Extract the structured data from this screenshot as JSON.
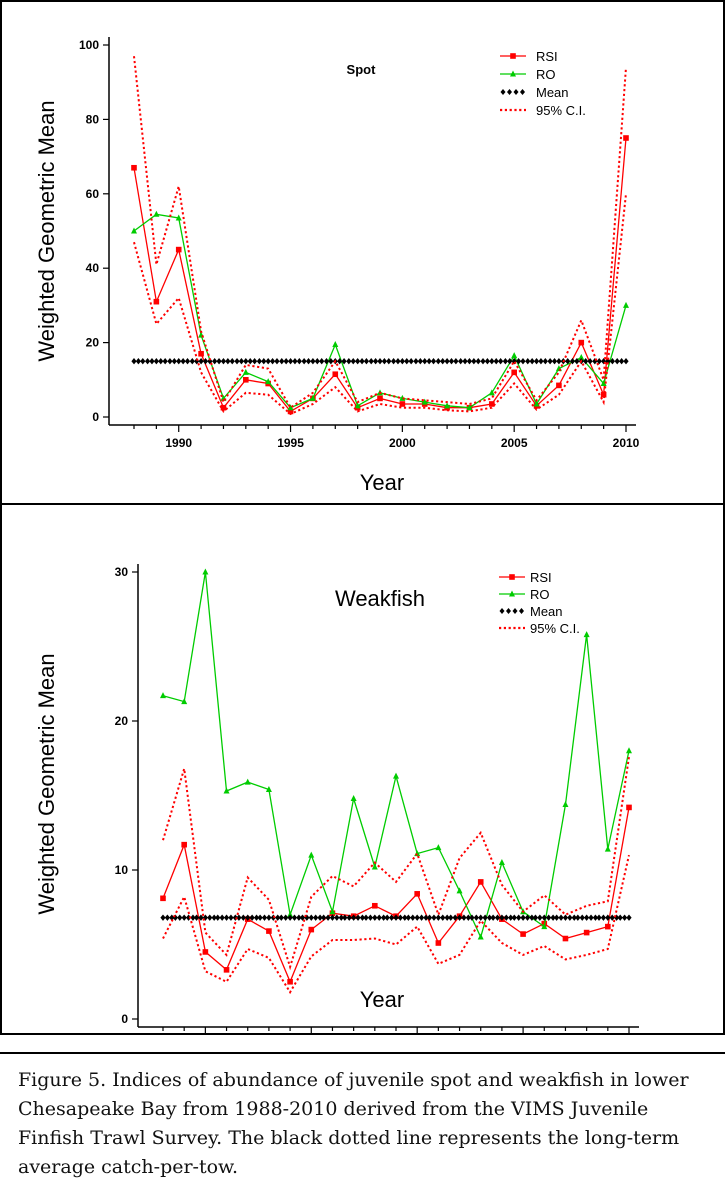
{
  "chart_data": [
    {
      "type": "line",
      "title": "Spot",
      "xlabel": "Year",
      "ylabel": "Weighted Geometric Mean",
      "xlim": [
        1988,
        2010
      ],
      "ylim": [
        0,
        100
      ],
      "xticks": [
        1990,
        1995,
        2000,
        2005,
        2010
      ],
      "yticks": [
        0,
        20,
        40,
        60,
        80,
        100
      ],
      "legend_position": "top-right",
      "x": [
        1988,
        1989,
        1990,
        1991,
        1992,
        1993,
        1994,
        1995,
        1996,
        1997,
        1998,
        1999,
        2000,
        2001,
        2002,
        2003,
        2004,
        2005,
        2006,
        2007,
        2008,
        2009,
        2010
      ],
      "series": [
        {
          "name": "RSI",
          "color": "#ff0000",
          "style": "solid-square",
          "values": [
            67,
            31,
            45,
            17,
            2.5,
            10,
            9,
            1.5,
            5,
            11.5,
            2.5,
            5,
            3.5,
            3.5,
            2.5,
            2.5,
            3.5,
            12,
            3,
            8.5,
            20,
            6,
            75
          ]
        },
        {
          "name": "RO",
          "color": "#00cc00",
          "style": "solid-triangle",
          "values": [
            50,
            54.5,
            53.5,
            22,
            5,
            12,
            9.5,
            2.5,
            5,
            19.5,
            3,
            6.5,
            5,
            4,
            3,
            2.5,
            6.5,
            16.5,
            3.5,
            13,
            16,
            9,
            30
          ]
        },
        {
          "name": "Mean",
          "color": "#000000",
          "style": "diamonds",
          "values": [
            15,
            15,
            15,
            15,
            15,
            15,
            15,
            15,
            15,
            15,
            15,
            15,
            15,
            15,
            15,
            15,
            15,
            15,
            15,
            15,
            15,
            15,
            15
          ]
        },
        {
          "name": "95% C.I.",
          "color": "#ff0000",
          "style": "dotted",
          "values": [
            97,
            41,
            62,
            23,
            4,
            14,
            13,
            2.5,
            6.5,
            15,
            4,
            6.5,
            5,
            4.5,
            4,
            3.5,
            5,
            15,
            4.5,
            12,
            26,
            10,
            94
          ]
        },
        {
          "name": "",
          "color": "#ff0000",
          "style": "dotted",
          "values": [
            47,
            25,
            32,
            12,
            1.5,
            6.5,
            6,
            0.8,
            3.5,
            8,
            1.5,
            3.5,
            2.5,
            2.5,
            1.8,
            1.5,
            2.5,
            9,
            2,
            6,
            15,
            4,
            60
          ]
        }
      ]
    },
    {
      "type": "line",
      "title": "Weakfish",
      "xlabel": "Year",
      "ylabel": "Weighted Geometric Mean",
      "xlim": [
        1988,
        2010
      ],
      "ylim": [
        0,
        30
      ],
      "xticks": [
        1990,
        1995,
        2000,
        2005,
        2010
      ],
      "yticks": [
        0,
        10,
        20,
        30
      ],
      "legend_position": "top-right",
      "x": [
        1988,
        1989,
        1990,
        1991,
        1992,
        1993,
        1994,
        1995,
        1996,
        1997,
        1998,
        1999,
        2000,
        2001,
        2002,
        2003,
        2004,
        2005,
        2006,
        2007,
        2008,
        2009,
        2010
      ],
      "series": [
        {
          "name": "RSI",
          "color": "#ff0000",
          "style": "solid-square",
          "values": [
            8.1,
            11.7,
            4.5,
            3.3,
            6.7,
            5.9,
            2.5,
            6.0,
            7.1,
            6.9,
            7.6,
            6.9,
            8.4,
            5.1,
            6.9,
            9.2,
            6.7,
            5.7,
            6.4,
            5.4,
            5.8,
            6.2,
            14.2
          ]
        },
        {
          "name": "RO",
          "color": "#00cc00",
          "style": "solid-triangle",
          "values": [
            21.7,
            21.3,
            30.0,
            15.3,
            15.9,
            15.4,
            7.0,
            11.0,
            7.2,
            14.8,
            10.2,
            16.3,
            11.1,
            11.5,
            8.6,
            5.5,
            10.5,
            7.2,
            6.2,
            14.4,
            25.8,
            11.4,
            18.0
          ]
        },
        {
          "name": "Mean",
          "color": "#000000",
          "style": "diamonds",
          "values": [
            6.8,
            6.8,
            6.8,
            6.8,
            6.8,
            6.8,
            6.8,
            6.8,
            6.8,
            6.8,
            6.8,
            6.8,
            6.8,
            6.8,
            6.8,
            6.8,
            6.8,
            6.8,
            6.8,
            6.8,
            6.8,
            6.8,
            6.8
          ]
        },
        {
          "name": "95% C.I.",
          "color": "#ff0000",
          "style": "dotted",
          "values": [
            12.0,
            16.8,
            5.8,
            4.3,
            9.5,
            8.0,
            3.5,
            8.2,
            9.6,
            8.9,
            10.5,
            9.2,
            11.1,
            7.0,
            10.8,
            12.5,
            9.0,
            7.2,
            8.3,
            7.0,
            7.6,
            7.9,
            17.6
          ]
        },
        {
          "name": "",
          "color": "#ff0000",
          "style": "dotted",
          "values": [
            5.4,
            8.2,
            3.2,
            2.5,
            4.7,
            4.1,
            1.8,
            4.2,
            5.3,
            5.3,
            5.4,
            5.0,
            6.2,
            3.7,
            4.3,
            6.6,
            5.1,
            4.3,
            4.9,
            4.0,
            4.3,
            4.7,
            11.0
          ]
        }
      ]
    }
  ],
  "caption": "Figure 5. Indices of abundance of juvenile spot and weakfish in lower Chesapeake Bay from 1988-2010 derived from the VIMS Juvenile Finfish Trawl Survey.  The black dotted line represents the long-term average catch-per-tow."
}
